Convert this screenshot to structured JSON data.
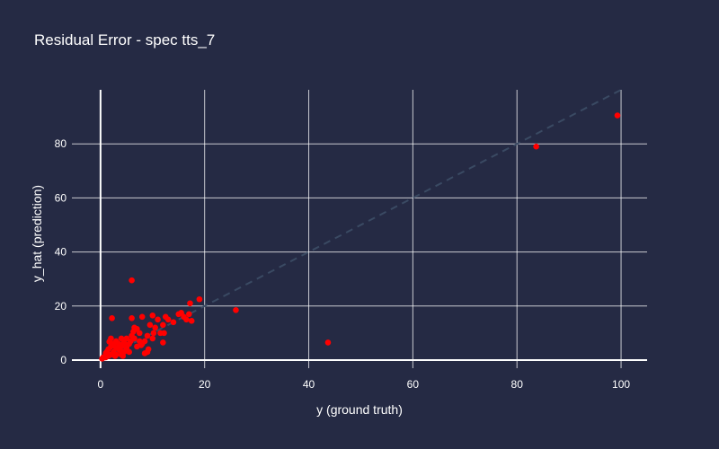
{
  "chart_data": {
    "type": "scatter",
    "title": "Residual Error - spec tts_7",
    "xlabel": "y (ground truth)",
    "ylabel": "y_hat (prediction)",
    "xlim": [
      -5.5,
      105
    ],
    "ylim": [
      -3,
      100
    ],
    "x_ticks": [
      0,
      20,
      40,
      60,
      80,
      100
    ],
    "y_ticks": [
      0,
      20,
      40,
      60,
      80
    ],
    "grid": true,
    "point_color": "#ff0000",
    "reference_line": {
      "x": [
        0,
        100
      ],
      "y": [
        0,
        100
      ],
      "color": "#3a4a63",
      "style": "dashed"
    },
    "series": [
      {
        "x": [
          99.3,
          83.7,
          43.7,
          26,
          19,
          17.2,
          17,
          16.5,
          17.5,
          16,
          15.5,
          15,
          14,
          13,
          12.5,
          12,
          12,
          11.5,
          11,
          10.5,
          10,
          10,
          9.5,
          9,
          9,
          8.5,
          8.5,
          8,
          8,
          7.5,
          7.5,
          7,
          7,
          6.5,
          6.5,
          6,
          6,
          6,
          5.8,
          5.5,
          5.5,
          5,
          5,
          5,
          4.5,
          4.5,
          4,
          4,
          4,
          3.5,
          3.5,
          3,
          3,
          3,
          2.5,
          2.5,
          2,
          2,
          2,
          1.8,
          1.5,
          1.5,
          1.2,
          1,
          1,
          0.8,
          0.5,
          0.3,
          2.2,
          9.2,
          3.8,
          7.8,
          10.2,
          12.2,
          6.3,
          2.8,
          4.3,
          1.7
        ],
        "y": [
          90.5,
          79,
          6.5,
          18.5,
          22.5,
          21,
          17,
          15,
          14.5,
          16,
          17.5,
          17,
          14,
          15,
          16,
          13,
          6.5,
          10,
          15,
          12,
          16.5,
          8,
          13,
          9,
          3,
          7,
          2.5,
          16,
          6,
          10,
          7,
          11.5,
          5,
          12,
          8,
          15.5,
          29.5,
          9,
          7,
          6,
          3,
          5,
          8,
          4.5,
          3,
          6.5,
          5,
          2,
          8,
          4,
          6,
          4.5,
          2,
          7,
          3,
          6,
          5,
          2,
          8,
          7,
          1.5,
          4,
          3,
          1,
          2.5,
          1,
          1,
          0.5,
          15.5,
          4,
          3.5,
          5.5,
          10,
          10,
          10.5,
          1.5,
          1.5,
          6.8
        ]
      }
    ]
  }
}
